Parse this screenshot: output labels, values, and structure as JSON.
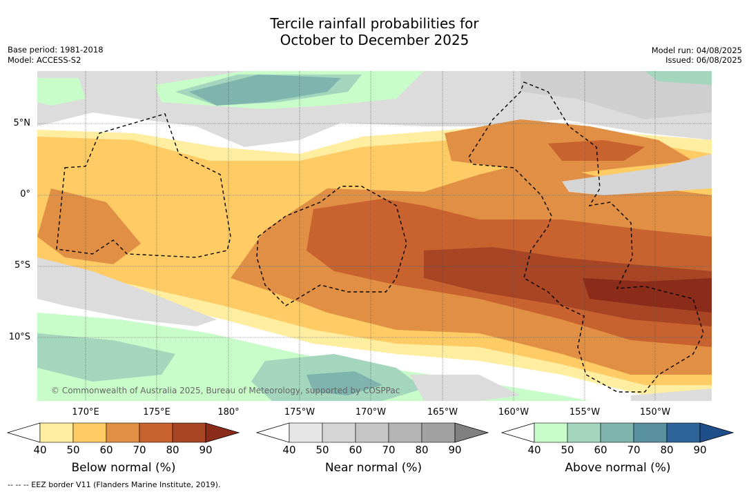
{
  "title": {
    "line1": "Tercile rainfall probabilities for",
    "line2": "October to December 2025"
  },
  "meta_left": {
    "base_period": "Base period: 1981-2018",
    "model": "Model: ACCESS-S2"
  },
  "meta_right": {
    "model_run": "Model run: 04/08/2025",
    "issued": "Issued: 06/08/2025"
  },
  "map": {
    "lat_labels": [
      "5°N",
      "0°",
      "5°S",
      "10°S"
    ],
    "lon_labels": [
      "170°E",
      "175°E",
      "180°",
      "175°W",
      "170°W",
      "165°W",
      "160°W",
      "155°W",
      "150°W"
    ],
    "copyright": "© Commonwealth of Australia 2025, Bureau of Meteorology, supported by COSPPac"
  },
  "colorbars": [
    {
      "label": "Below normal (%)",
      "ticks": [
        "40",
        "50",
        "60",
        "70",
        "80",
        "90"
      ],
      "under_color": "#ffffff",
      "colors": [
        "#ffeda0",
        "#fecb65",
        "#e08f44",
        "#c8622f",
        "#a84525"
      ],
      "over_color": "#8b2c1b"
    },
    {
      "label": "Near normal (%)",
      "ticks": [
        "40",
        "50",
        "60",
        "70",
        "80",
        "90"
      ],
      "under_color": "#ffffff",
      "colors": [
        "#e6e6e6",
        "#d5d5d5",
        "#c6c6c6",
        "#b4b4b4",
        "#a2a2a2"
      ],
      "over_color": "#808080"
    },
    {
      "label": "Above normal (%)",
      "ticks": [
        "40",
        "50",
        "60",
        "70",
        "80",
        "90"
      ],
      "under_color": "#ffffff",
      "colors": [
        "#c8fcc8",
        "#a3d6bd",
        "#7fb3ad",
        "#5890a0",
        "#2f6498"
      ],
      "over_color": "#1f4f8a"
    }
  ],
  "footnote": "--  --  -- EEZ border V11 (Flanders Marine Institute, 2019)."
}
